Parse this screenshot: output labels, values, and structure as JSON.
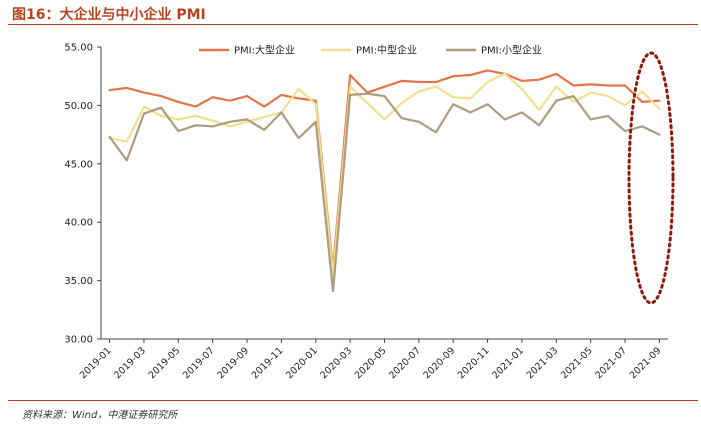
{
  "header": {
    "title": "图16：大企业与中小企业 PMI"
  },
  "footer": {
    "source": "资料来源：Wind，中港证券研究所"
  },
  "colors": {
    "large": "#e4734a",
    "medium": "#f1e08e",
    "small": "#ad9c7e",
    "ellipse": "#8b1a0c",
    "accent": "#b5431f"
  },
  "chart_data": {
    "type": "line",
    "x": [
      "2019-01",
      "2019-02",
      "2019-03",
      "2019-04",
      "2019-05",
      "2019-06",
      "2019-07",
      "2019-08",
      "2019-09",
      "2019-10",
      "2019-11",
      "2019-12",
      "2020-01",
      "2020-02",
      "2020-03",
      "2020-04",
      "2020-05",
      "2020-06",
      "2020-07",
      "2020-08",
      "2020-09",
      "2020-10",
      "2020-11",
      "2020-12",
      "2021-01",
      "2021-02",
      "2021-03",
      "2021-04",
      "2021-05",
      "2021-06",
      "2021-07",
      "2021-08",
      "2021-09"
    ],
    "xtick_labels": [
      "2019-01",
      "2019-03",
      "2019-05",
      "2019-07",
      "2019-09",
      "2019-11",
      "2020-01",
      "2020-03",
      "2020-05",
      "2020-07",
      "2020-09",
      "2020-11",
      "2021-01",
      "2021-03",
      "2021-05",
      "2021-07",
      "2021-09"
    ],
    "ylim": [
      30,
      55
    ],
    "yticks": [
      "30.00",
      "35.00",
      "40.00",
      "45.00",
      "50.00",
      "55.00"
    ],
    "legend_position": "top",
    "grid": false,
    "series": [
      {
        "name": "PMI:大型企业",
        "color": "#e4734a",
        "values": [
          51.3,
          51.5,
          51.1,
          50.8,
          50.3,
          49.9,
          50.7,
          50.4,
          50.8,
          49.9,
          50.9,
          50.6,
          50.4,
          36.0,
          52.6,
          51.1,
          51.6,
          52.1,
          52.0,
          52.0,
          52.5,
          52.6,
          53.0,
          52.7,
          52.1,
          52.2,
          52.7,
          51.7,
          51.8,
          51.7,
          51.7,
          50.3,
          50.4
        ]
      },
      {
        "name": "PMI:中型企业",
        "color": "#f1e08e",
        "values": [
          47.2,
          46.9,
          49.9,
          49.1,
          48.8,
          49.1,
          48.7,
          48.2,
          48.6,
          49.0,
          49.4,
          51.4,
          50.1,
          35.5,
          51.6,
          50.2,
          48.8,
          50.2,
          51.2,
          51.6,
          50.7,
          50.6,
          52.0,
          52.7,
          51.4,
          49.6,
          51.6,
          50.3,
          51.1,
          50.8,
          50.0,
          51.2,
          49.7
        ]
      },
      {
        "name": "PMI:小型企业",
        "color": "#ad9c7e",
        "values": [
          47.3,
          45.3,
          49.3,
          49.8,
          47.8,
          48.3,
          48.2,
          48.6,
          48.8,
          47.9,
          49.4,
          47.2,
          48.6,
          34.1,
          50.9,
          51.0,
          50.8,
          48.9,
          48.6,
          47.7,
          50.1,
          49.4,
          50.1,
          48.8,
          49.4,
          48.3,
          50.4,
          50.8,
          48.8,
          49.1,
          47.8,
          48.2,
          47.5
        ]
      }
    ]
  }
}
